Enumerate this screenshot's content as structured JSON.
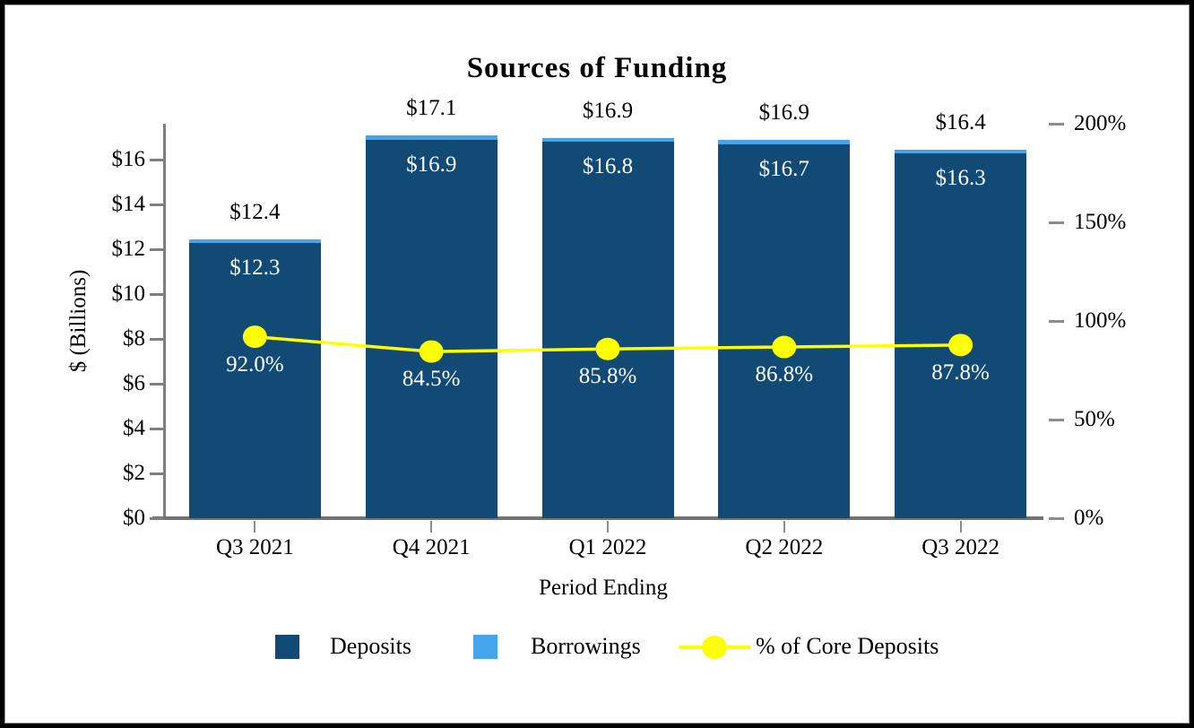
{
  "chart_data": {
    "type": "bar",
    "subtype": "stacked-bars-with-secondary-axis-line",
    "title": "Sources of Funding",
    "xlabel": "Period Ending",
    "ylabel_left": "$ (Billions)",
    "categories": [
      "Q3 2021",
      "Q4 2021",
      "Q1 2022",
      "Q2 2022",
      "Q3 2022"
    ],
    "series": [
      {
        "name": "Deposits",
        "type": "bar",
        "axis": "left",
        "color": "#114a75",
        "values": [
          12.3,
          16.9,
          16.8,
          16.7,
          16.3
        ],
        "labels": [
          "$12.3",
          "$16.9",
          "$16.8",
          "$16.7",
          "$16.3"
        ],
        "label_color": "#ffffff"
      },
      {
        "name": "Borrowings",
        "type": "bar",
        "axis": "left",
        "color": "#45a5ec",
        "values": [
          0.1,
          0.2,
          0.1,
          0.2,
          0.1
        ]
      },
      {
        "name": "% of Core Deposits",
        "type": "line",
        "axis": "right",
        "color": "#ffff00",
        "values": [
          92.0,
          84.5,
          85.8,
          86.8,
          87.8
        ],
        "labels": [
          "92.0%",
          "84.5%",
          "85.8%",
          "86.8%",
          "87.8%"
        ],
        "label_color": "#ffffff"
      }
    ],
    "stack_totals": {
      "values": [
        12.4,
        17.1,
        16.9,
        16.9,
        16.4
      ],
      "labels": [
        "$12.4",
        "$17.1",
        "$16.9",
        "$16.9",
        "$16.4"
      ]
    },
    "left_axis": {
      "tick_labels": [
        "$0",
        "$2",
        "$4",
        "$6",
        "$8",
        "$10",
        "$12",
        "$14",
        "$16"
      ],
      "tick_values": [
        0,
        2,
        4,
        6,
        8,
        10,
        12,
        14,
        16
      ],
      "range": [
        0,
        17.6
      ]
    },
    "right_axis": {
      "tick_labels": [
        "0%",
        "50%",
        "100%",
        "150%",
        "200%"
      ],
      "tick_values": [
        0,
        50,
        100,
        150,
        200
      ],
      "range": [
        0,
        200
      ]
    },
    "legend": {
      "position": "bottom",
      "items": [
        {
          "label": "Deposits",
          "marker": "square",
          "color": "#114a75"
        },
        {
          "label": "Borrowings",
          "marker": "square",
          "color": "#45a5ec"
        },
        {
          "label": "% of Core Deposits",
          "marker": "line-circle",
          "color": "#ffff00"
        }
      ]
    },
    "grid": false,
    "axis_color": "#7f7f7f",
    "background_color": "#ffffff",
    "frame_color": "#000000"
  }
}
